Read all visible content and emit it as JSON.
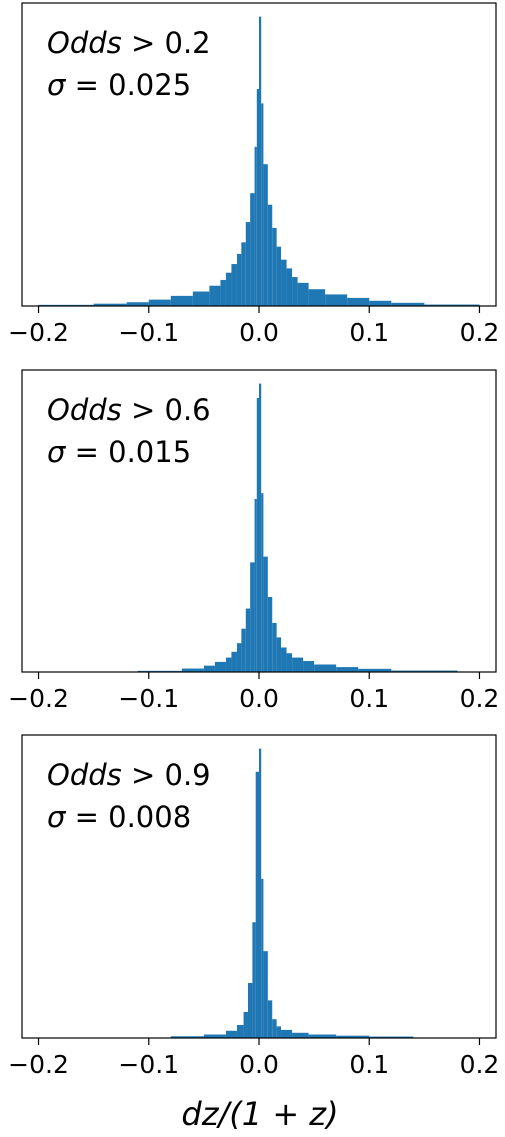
{
  "chart_data": {
    "type": "histogram",
    "color": "#1f77b4",
    "xlabel": "dz/(1 + z)",
    "xlim": [
      -0.215,
      0.215
    ],
    "x_ticks": [
      -0.2,
      -0.1,
      0.0,
      0.1,
      0.2
    ],
    "x_tick_labels": [
      "−0.2",
      "−0.1",
      "0.0",
      "0.1",
      "0.2"
    ],
    "y_axis_shown": false,
    "grid": false,
    "panels": [
      {
        "annotation_line1": {
          "text": "Odds",
          "suffix": " > 0.2"
        },
        "annotation_line2": {
          "symbol": "σ",
          "suffix": " = 0.025"
        },
        "bins": [
          [
            -0.2,
            -0.15,
            0.004
          ],
          [
            -0.15,
            -0.12,
            0.008
          ],
          [
            -0.12,
            -0.1,
            0.013
          ],
          [
            -0.1,
            -0.08,
            0.022
          ],
          [
            -0.08,
            -0.06,
            0.035
          ],
          [
            -0.06,
            -0.045,
            0.05
          ],
          [
            -0.045,
            -0.035,
            0.07
          ],
          [
            -0.035,
            -0.03,
            0.09
          ],
          [
            -0.03,
            -0.025,
            0.115
          ],
          [
            -0.025,
            -0.02,
            0.145
          ],
          [
            -0.02,
            -0.016,
            0.18
          ],
          [
            -0.016,
            -0.012,
            0.22
          ],
          [
            -0.012,
            -0.008,
            0.29
          ],
          [
            -0.008,
            -0.004,
            0.39
          ],
          [
            -0.004,
            -0.002,
            0.55
          ],
          [
            -0.002,
            0.0,
            0.75
          ],
          [
            0.0,
            0.002,
            1.0
          ],
          [
            0.002,
            0.004,
            0.7
          ],
          [
            0.004,
            0.008,
            0.49
          ],
          [
            0.008,
            0.012,
            0.35
          ],
          [
            0.012,
            0.016,
            0.27
          ],
          [
            0.016,
            0.02,
            0.205
          ],
          [
            0.02,
            0.025,
            0.16
          ],
          [
            0.025,
            0.03,
            0.13
          ],
          [
            0.03,
            0.035,
            0.1
          ],
          [
            0.035,
            0.045,
            0.08
          ],
          [
            0.045,
            0.06,
            0.058
          ],
          [
            0.06,
            0.08,
            0.04
          ],
          [
            0.08,
            0.1,
            0.028
          ],
          [
            0.1,
            0.12,
            0.018
          ],
          [
            0.12,
            0.15,
            0.011
          ],
          [
            0.15,
            0.2,
            0.005
          ]
        ]
      },
      {
        "annotation_line1": {
          "text": "Odds",
          "suffix": " > 0.6"
        },
        "annotation_line2": {
          "symbol": "σ",
          "suffix": " = 0.015"
        },
        "bins": [
          [
            -0.11,
            -0.07,
            0.004
          ],
          [
            -0.07,
            -0.05,
            0.012
          ],
          [
            -0.05,
            -0.04,
            0.022
          ],
          [
            -0.04,
            -0.03,
            0.035
          ],
          [
            -0.03,
            -0.025,
            0.05
          ],
          [
            -0.025,
            -0.02,
            0.07
          ],
          [
            -0.02,
            -0.016,
            0.1
          ],
          [
            -0.016,
            -0.012,
            0.15
          ],
          [
            -0.012,
            -0.008,
            0.22
          ],
          [
            -0.008,
            -0.004,
            0.38
          ],
          [
            -0.004,
            -0.002,
            0.6
          ],
          [
            -0.002,
            0.0,
            0.95
          ],
          [
            0.0,
            0.002,
            1.0
          ],
          [
            0.002,
            0.004,
            0.62
          ],
          [
            0.004,
            0.008,
            0.4
          ],
          [
            0.008,
            0.012,
            0.26
          ],
          [
            0.012,
            0.016,
            0.17
          ],
          [
            0.016,
            0.02,
            0.12
          ],
          [
            0.02,
            0.025,
            0.085
          ],
          [
            0.025,
            0.03,
            0.065
          ],
          [
            0.03,
            0.04,
            0.05
          ],
          [
            0.04,
            0.05,
            0.038
          ],
          [
            0.05,
            0.07,
            0.026
          ],
          [
            0.07,
            0.09,
            0.017
          ],
          [
            0.09,
            0.12,
            0.011
          ],
          [
            0.12,
            0.18,
            0.005
          ]
        ]
      },
      {
        "annotation_line1": {
          "text": "Odds",
          "suffix": " > 0.9"
        },
        "annotation_line2": {
          "symbol": "σ",
          "suffix": " = 0.008"
        },
        "bins": [
          [
            -0.08,
            -0.05,
            0.006
          ],
          [
            -0.05,
            -0.03,
            0.012
          ],
          [
            -0.03,
            -0.02,
            0.025
          ],
          [
            -0.02,
            -0.014,
            0.045
          ],
          [
            -0.014,
            -0.01,
            0.09
          ],
          [
            -0.01,
            -0.006,
            0.19
          ],
          [
            -0.006,
            -0.003,
            0.4
          ],
          [
            -0.003,
            0.0,
            0.92
          ],
          [
            0.0,
            0.002,
            1.0
          ],
          [
            0.002,
            0.004,
            0.55
          ],
          [
            0.004,
            0.008,
            0.3
          ],
          [
            0.008,
            0.012,
            0.13
          ],
          [
            0.012,
            0.016,
            0.065
          ],
          [
            0.016,
            0.02,
            0.04
          ],
          [
            0.02,
            0.03,
            0.028
          ],
          [
            0.03,
            0.045,
            0.018
          ],
          [
            0.045,
            0.07,
            0.012
          ],
          [
            0.07,
            0.1,
            0.008
          ],
          [
            0.1,
            0.14,
            0.005
          ]
        ]
      }
    ]
  }
}
